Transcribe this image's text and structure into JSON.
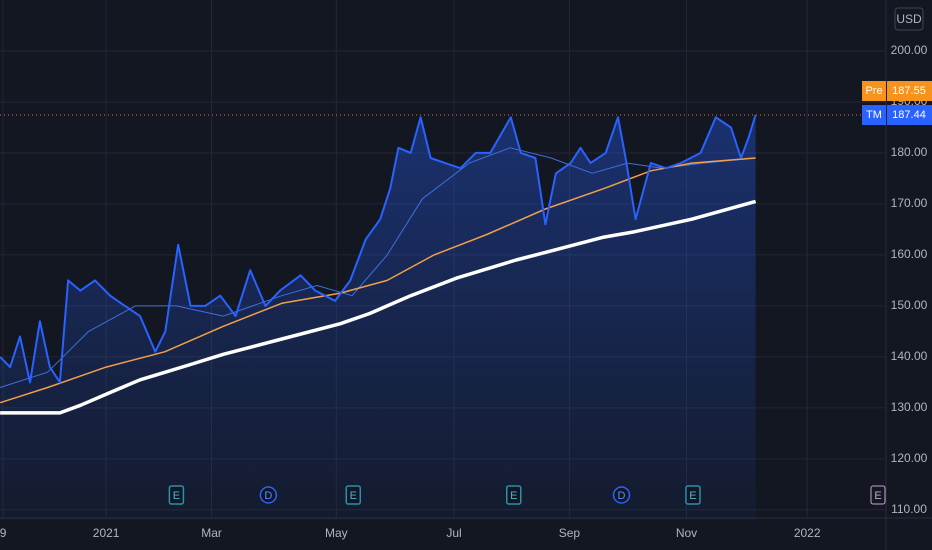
{
  "chart_data": {
    "type": "line",
    "currency": "USD",
    "xlim": [
      -1.812,
      13.316
    ],
    "xticks": [
      {
        "value": -1.76,
        "label": "9"
      },
      {
        "value": 0,
        "label": "2021"
      },
      {
        "value": 1.8,
        "label": "Mar"
      },
      {
        "value": 3.93,
        "label": "May"
      },
      {
        "value": 5.94,
        "label": "Jul"
      },
      {
        "value": 7.91,
        "label": "Sep"
      },
      {
        "value": 9.91,
        "label": "Nov"
      },
      {
        "value": 11.97,
        "label": "2022"
      }
    ],
    "ylim": [
      108,
      210
    ],
    "yticks": [
      {
        "value": 110,
        "label": "110.00"
      },
      {
        "value": 120,
        "label": "120.00"
      },
      {
        "value": 130,
        "label": "130.00"
      },
      {
        "value": 140,
        "label": "140.00"
      },
      {
        "value": 150,
        "label": "150.00"
      },
      {
        "value": 160,
        "label": "160.00"
      },
      {
        "value": 170,
        "label": "170.00"
      },
      {
        "value": 180,
        "label": "180.00"
      },
      {
        "value": 190,
        "label": "190.00"
      },
      {
        "value": 200,
        "label": "200.00"
      }
    ],
    "grid": true,
    "series": [
      {
        "name": "TM",
        "color": "#2962ff",
        "x": [
          -1.81,
          -1.64,
          -1.47,
          -1.3,
          -1.13,
          -0.96,
          -0.79,
          -0.65,
          -0.44,
          -0.19,
          0.07,
          0.32,
          0.58,
          0.84,
          1.01,
          1.23,
          1.44,
          1.69,
          1.95,
          2.21,
          2.46,
          2.72,
          2.97,
          3.32,
          3.57,
          3.91,
          4.17,
          4.43,
          4.68,
          4.85,
          4.99,
          5.2,
          5.37,
          5.54,
          5.79,
          6.05,
          6.31,
          6.56,
          6.91,
          7.08,
          7.33,
          7.5,
          7.68,
          7.93,
          8.1,
          8.27,
          8.53,
          8.74,
          8.87,
          9.04,
          9.3,
          9.56,
          9.81,
          10.15,
          10.41,
          10.67,
          10.84,
          10.97,
          11.09
        ],
        "values": [
          140,
          138,
          144,
          135,
          147,
          138,
          135,
          155,
          153,
          155,
          152,
          150,
          148,
          141,
          145,
          162,
          150,
          150,
          152,
          148,
          157,
          150,
          153,
          156,
          153,
          151,
          155,
          163,
          167,
          173,
          181,
          180,
          187,
          179,
          178,
          177,
          180,
          180,
          187,
          180,
          179,
          166,
          176,
          178,
          181,
          178,
          180,
          187,
          179,
          167,
          178,
          177,
          178,
          180,
          187,
          185,
          179,
          183,
          187.44
        ]
      },
      {
        "color": "#ffffff",
        "x": [
          -1.81,
          -0.79,
          -0.44,
          0.07,
          0.58,
          1.01,
          1.44,
          2.0,
          3.0,
          4.0,
          4.5,
          5.2,
          6.0,
          7.0,
          7.5,
          8.5,
          9.0,
          10.0,
          11.09
        ],
        "values": [
          129,
          129,
          130.5,
          133,
          135.5,
          137,
          138.5,
          140.5,
          143.5,
          146.5,
          148.5,
          152,
          155.5,
          159,
          160.5,
          163.5,
          164.5,
          167,
          170.5
        ]
      },
      {
        "color": "#f0a04b",
        "x": [
          -1.81,
          -1,
          0,
          1,
          2,
          3,
          4,
          4.8,
          5.6,
          6.5,
          7.5,
          8.5,
          9.3,
          10,
          11.09
        ],
        "values": [
          131,
          134,
          138,
          141,
          146,
          150.5,
          152.5,
          155,
          160,
          164,
          169,
          173,
          176.5,
          178,
          179
        ]
      },
      {
        "color": "#3d6fe0",
        "x": [
          -1.81,
          -1,
          -0.3,
          0.5,
          1.2,
          2,
          3,
          3.6,
          4.2,
          4.8,
          5.4,
          6.2,
          6.9,
          7.6,
          8.3,
          8.9,
          9.5,
          10.2,
          11.09
        ],
        "values": [
          134,
          137,
          145,
          150,
          150,
          148,
          152,
          154,
          152,
          160,
          171,
          178,
          181,
          179,
          176,
          178,
          177,
          178,
          179
        ]
      }
    ],
    "price_labels": [
      {
        "name": "Pre",
        "value": 187.55,
        "color": "#f7931a"
      },
      {
        "name": "TM",
        "value": 187.44,
        "color": "#2962ff"
      }
    ],
    "events": [
      {
        "x": 1.2,
        "label": "E"
      },
      {
        "x": 2.77,
        "label": "D"
      },
      {
        "x": 4.22,
        "label": "E"
      },
      {
        "x": 6.96,
        "label": "E"
      },
      {
        "x": 8.8,
        "label": "D"
      },
      {
        "x": 10.02,
        "label": "E"
      }
    ],
    "axis_event": "E"
  }
}
